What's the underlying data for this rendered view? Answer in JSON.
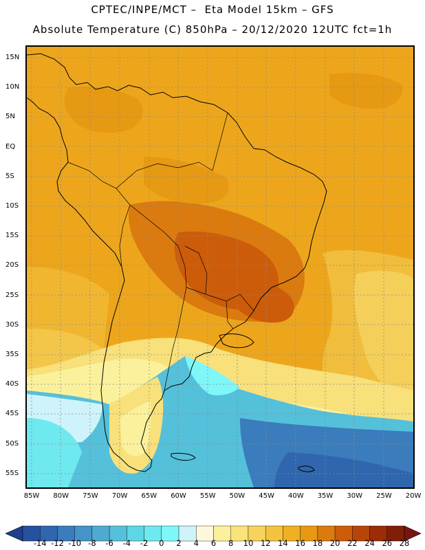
{
  "title": {
    "line1": "CPTEC/INPE/MCT –  Eta Model 15km – GFS",
    "line2": "Absolute Temperature (C) 850hPa – 20/12/2020 12UTC fct=1h"
  },
  "axes": {
    "lat_labels": [
      "15N",
      "10N",
      "5N",
      "EQ",
      "5S",
      "10S",
      "15S",
      "20S",
      "25S",
      "30S",
      "35S",
      "40S",
      "45S",
      "50S",
      "55S"
    ],
    "lon_labels": [
      "85W",
      "80W",
      "75W",
      "70W",
      "65W",
      "60W",
      "55W",
      "50W",
      "45W",
      "40W",
      "35W",
      "30W",
      "25W",
      "20W"
    ]
  },
  "colorbar": {
    "labels": [
      "-14",
      "-12",
      "-10",
      "-8",
      "-6",
      "-4",
      "-2",
      "0",
      "2",
      "4",
      "6",
      "8",
      "10",
      "12",
      "14",
      "16",
      "18",
      "20",
      "22",
      "24",
      "26",
      "28"
    ],
    "colors": [
      "#1e3f8f",
      "#25519f",
      "#2f66ad",
      "#3a7cbc",
      "#4593c7",
      "#4faacf",
      "#55c0da",
      "#5ed6e5",
      "#6ee9ef",
      "#7ff7f9",
      "#cff3fb",
      "#fdf7dc",
      "#fbf19c",
      "#f9e37a",
      "#f6d35c",
      "#f2c33f",
      "#efb023",
      "#e69912",
      "#db7a0e",
      "#cc5c0a",
      "#b74408",
      "#9a2d06",
      "#7f1f05",
      "#781412"
    ]
  },
  "colors": {
    "background": "#eda61c",
    "grid": "#8a8a8a",
    "coast": "#000000"
  }
}
